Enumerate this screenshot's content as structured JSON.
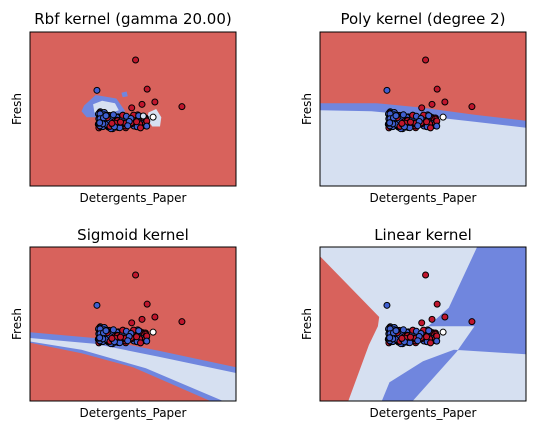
{
  "chart_data": [
    {
      "type": "scatter",
      "title": "Rbf kernel (gamma 20.00)",
      "xlabel": "Detergents_Paper",
      "ylabel": "Fresh",
      "ticks": "none",
      "regions": [
        {
          "id": "r1",
          "class": "high",
          "pts": [
            [
              -4.0,
              -3.0
            ],
            [
              4.0,
              -3.0
            ],
            [
              4.0,
              3.6
            ],
            [
              -4.0,
              3.6
            ]
          ]
        },
        {
          "id": "r2",
          "class": "low-margin",
          "pts": [
            [
              -1.9,
              0.45
            ],
            [
              -1.45,
              0.9
            ],
            [
              -0.65,
              0.75
            ],
            [
              -0.3,
              0.2
            ],
            [
              -0.85,
              -0.05
            ],
            [
              -1.8,
              -0.05
            ],
            [
              -2.0,
              0.2
            ]
          ]
        },
        {
          "id": "r3",
          "class": "low",
          "pts": [
            [
              -1.55,
              0.5
            ],
            [
              -1.2,
              0.65
            ],
            [
              -0.7,
              0.55
            ],
            [
              -0.55,
              0.25
            ],
            [
              -0.95,
              0.1
            ],
            [
              -1.5,
              0.15
            ]
          ]
        },
        {
          "id": "r4",
          "class": "low-margin",
          "pts": [
            [
              -0.45,
              1.0
            ],
            [
              -0.25,
              1.05
            ],
            [
              -0.2,
              0.85
            ],
            [
              -0.4,
              0.8
            ]
          ]
        },
        {
          "id": "r5",
          "class": "low",
          "pts": [
            [
              -0.95,
              -0.1
            ],
            [
              -0.65,
              -0.05
            ],
            [
              -0.6,
              -0.45
            ],
            [
              -0.85,
              -0.55
            ],
            [
              -1.0,
              -0.35
            ]
          ]
        },
        {
          "id": "r6",
          "class": "low",
          "pts": [
            [
              0.6,
              0.15
            ],
            [
              0.9,
              0.3
            ],
            [
              1.1,
              -0.05
            ],
            [
              1.05,
              -0.45
            ],
            [
              0.75,
              -0.45
            ],
            [
              0.55,
              -0.15
            ]
          ]
        }
      ],
      "points": {
        "red": [
          [
            0.1,
            2.4
          ],
          [
            0.55,
            1.15
          ],
          [
            0.85,
            0.6
          ],
          [
            1.9,
            0.4
          ],
          [
            0.35,
            0.5
          ],
          [
            -0.05,
            0.35
          ]
        ],
        "blue": [
          [
            -1.4,
            1.1
          ]
        ],
        "white": [
          [
            0.78,
            -0.05
          ]
        ]
      },
      "margin_points": [
        [
          0.4,
          0.0
        ]
      ]
    },
    {
      "type": "scatter",
      "title": "Poly kernel (degree 2)",
      "xlabel": "Detergents_Paper",
      "ylabel": "Fresh",
      "ticks": "none",
      "regions": [
        {
          "id": "r1",
          "class": "high",
          "pts": [
            [
              -4.0,
              -3.0
            ],
            [
              4.0,
              -3.0
            ],
            [
              4.0,
              3.6
            ],
            [
              -4.0,
              3.6
            ]
          ]
        },
        {
          "id": "r2",
          "class": "low-margin",
          "pts": [
            [
              -4.0,
              0.55
            ],
            [
              -1.8,
              0.55
            ],
            [
              0.0,
              0.35
            ],
            [
              2.0,
              0.05
            ],
            [
              4.0,
              -0.2
            ],
            [
              4.0,
              -3.0
            ],
            [
              -4.0,
              -3.0
            ]
          ]
        },
        {
          "id": "r3",
          "class": "low",
          "pts": [
            [
              -4.0,
              0.25
            ],
            [
              -2.0,
              0.2
            ],
            [
              0.0,
              0.0
            ],
            [
              2.0,
              -0.25
            ],
            [
              4.0,
              -0.5
            ],
            [
              4.0,
              -3.0
            ],
            [
              -4.0,
              -3.0
            ]
          ]
        }
      ],
      "points": {
        "red": [
          [
            0.1,
            2.4
          ],
          [
            0.55,
            1.15
          ],
          [
            0.85,
            0.6
          ],
          [
            1.9,
            0.4
          ],
          [
            0.35,
            0.5
          ],
          [
            -0.05,
            0.35
          ]
        ],
        "blue": [
          [
            -1.4,
            1.1
          ]
        ],
        "white": [
          [
            0.78,
            -0.05
          ]
        ]
      },
      "margin_points": []
    },
    {
      "type": "scatter",
      "title": "Sigmoid kernel",
      "xlabel": "Detergents_Paper",
      "ylabel": "Fresh",
      "ticks": "none",
      "regions": [
        {
          "id": "r1",
          "class": "high",
          "pts": [
            [
              -4.0,
              -3.0
            ],
            [
              4.0,
              -3.0
            ],
            [
              4.0,
              3.6
            ],
            [
              -4.0,
              3.6
            ]
          ]
        },
        {
          "id": "r2",
          "class": "low-margin",
          "pts": [
            [
              -4.0,
              -0.05
            ],
            [
              -1.5,
              -0.3
            ],
            [
              1.0,
              -0.85
            ],
            [
              4.0,
              -1.55
            ],
            [
              4.0,
              -3.0
            ],
            [
              3.0,
              -3.0
            ],
            [
              0.0,
              -1.55
            ],
            [
              -2.0,
              -0.95
            ],
            [
              -4.0,
              -0.5
            ]
          ]
        },
        {
          "id": "r3",
          "class": "low",
          "pts": [
            [
              -4.0,
              -0.3
            ],
            [
              -1.5,
              -0.55
            ],
            [
              1.0,
              -1.1
            ],
            [
              4.0,
              -1.8
            ],
            [
              4.0,
              -3.0
            ],
            [
              3.5,
              -3.0
            ],
            [
              0.5,
              -1.6
            ],
            [
              -2.0,
              -0.8
            ],
            [
              -4.0,
              -0.45
            ]
          ]
        }
      ],
      "points": {
        "red": [
          [
            0.1,
            2.4
          ],
          [
            0.55,
            1.15
          ],
          [
            0.85,
            0.6
          ],
          [
            1.9,
            0.4
          ],
          [
            0.35,
            0.5
          ],
          [
            -0.05,
            0.35
          ]
        ],
        "blue": [
          [
            -1.4,
            1.1
          ]
        ],
        "white": [
          [
            0.78,
            -0.05
          ]
        ]
      },
      "margin_points": []
    },
    {
      "type": "scatter",
      "title": "Linear kernel",
      "xlabel": "Detergents_Paper",
      "ylabel": "Fresh",
      "ticks": "none",
      "regions": [
        {
          "id": "r1",
          "class": "low",
          "pts": [
            [
              -4.0,
              -3.0
            ],
            [
              4.0,
              -3.0
            ],
            [
              4.0,
              3.6
            ],
            [
              -4.0,
              3.6
            ]
          ]
        },
        {
          "id": "r2",
          "class": "high",
          "pts": [
            [
              -4.0,
              3.2
            ],
            [
              -1.7,
              0.6
            ],
            [
              -1.75,
              0.2
            ],
            [
              -2.1,
              -0.6
            ],
            [
              -2.9,
              -3.0
            ],
            [
              -4.0,
              -3.0
            ]
          ]
        },
        {
          "id": "r3",
          "class": "low-margin",
          "pts": [
            [
              0.2,
              0.2
            ],
            [
              1.0,
              1.0
            ],
            [
              2.1,
              3.6
            ],
            [
              4.0,
              3.6
            ],
            [
              4.0,
              -1.0
            ],
            [
              1.2,
              -0.8
            ],
            [
              0.0,
              -1.3
            ],
            [
              -1.3,
              -2.2
            ],
            [
              -1.6,
              -3.0
            ],
            [
              -0.4,
              -3.0
            ],
            [
              1.3,
              -0.9
            ],
            [
              2.0,
              0.2
            ]
          ]
        }
      ],
      "points": {
        "red": [
          [
            0.1,
            2.4
          ],
          [
            0.55,
            1.15
          ],
          [
            0.85,
            0.6
          ],
          [
            1.9,
            0.4
          ],
          [
            0.35,
            0.5
          ],
          [
            -0.05,
            0.35
          ]
        ],
        "blue": [
          [
            -1.4,
            1.1
          ]
        ],
        "white": [
          [
            0.78,
            -0.05
          ]
        ]
      },
      "margin_points": []
    }
  ],
  "colors": {
    "high": "#d8625c",
    "low": "#d6e0f1",
    "low-margin": "#7086de",
    "point_red": "#c0162d",
    "point_blue": "#3f5fd0",
    "point_white": "#ffffff",
    "edge": "#000000"
  }
}
